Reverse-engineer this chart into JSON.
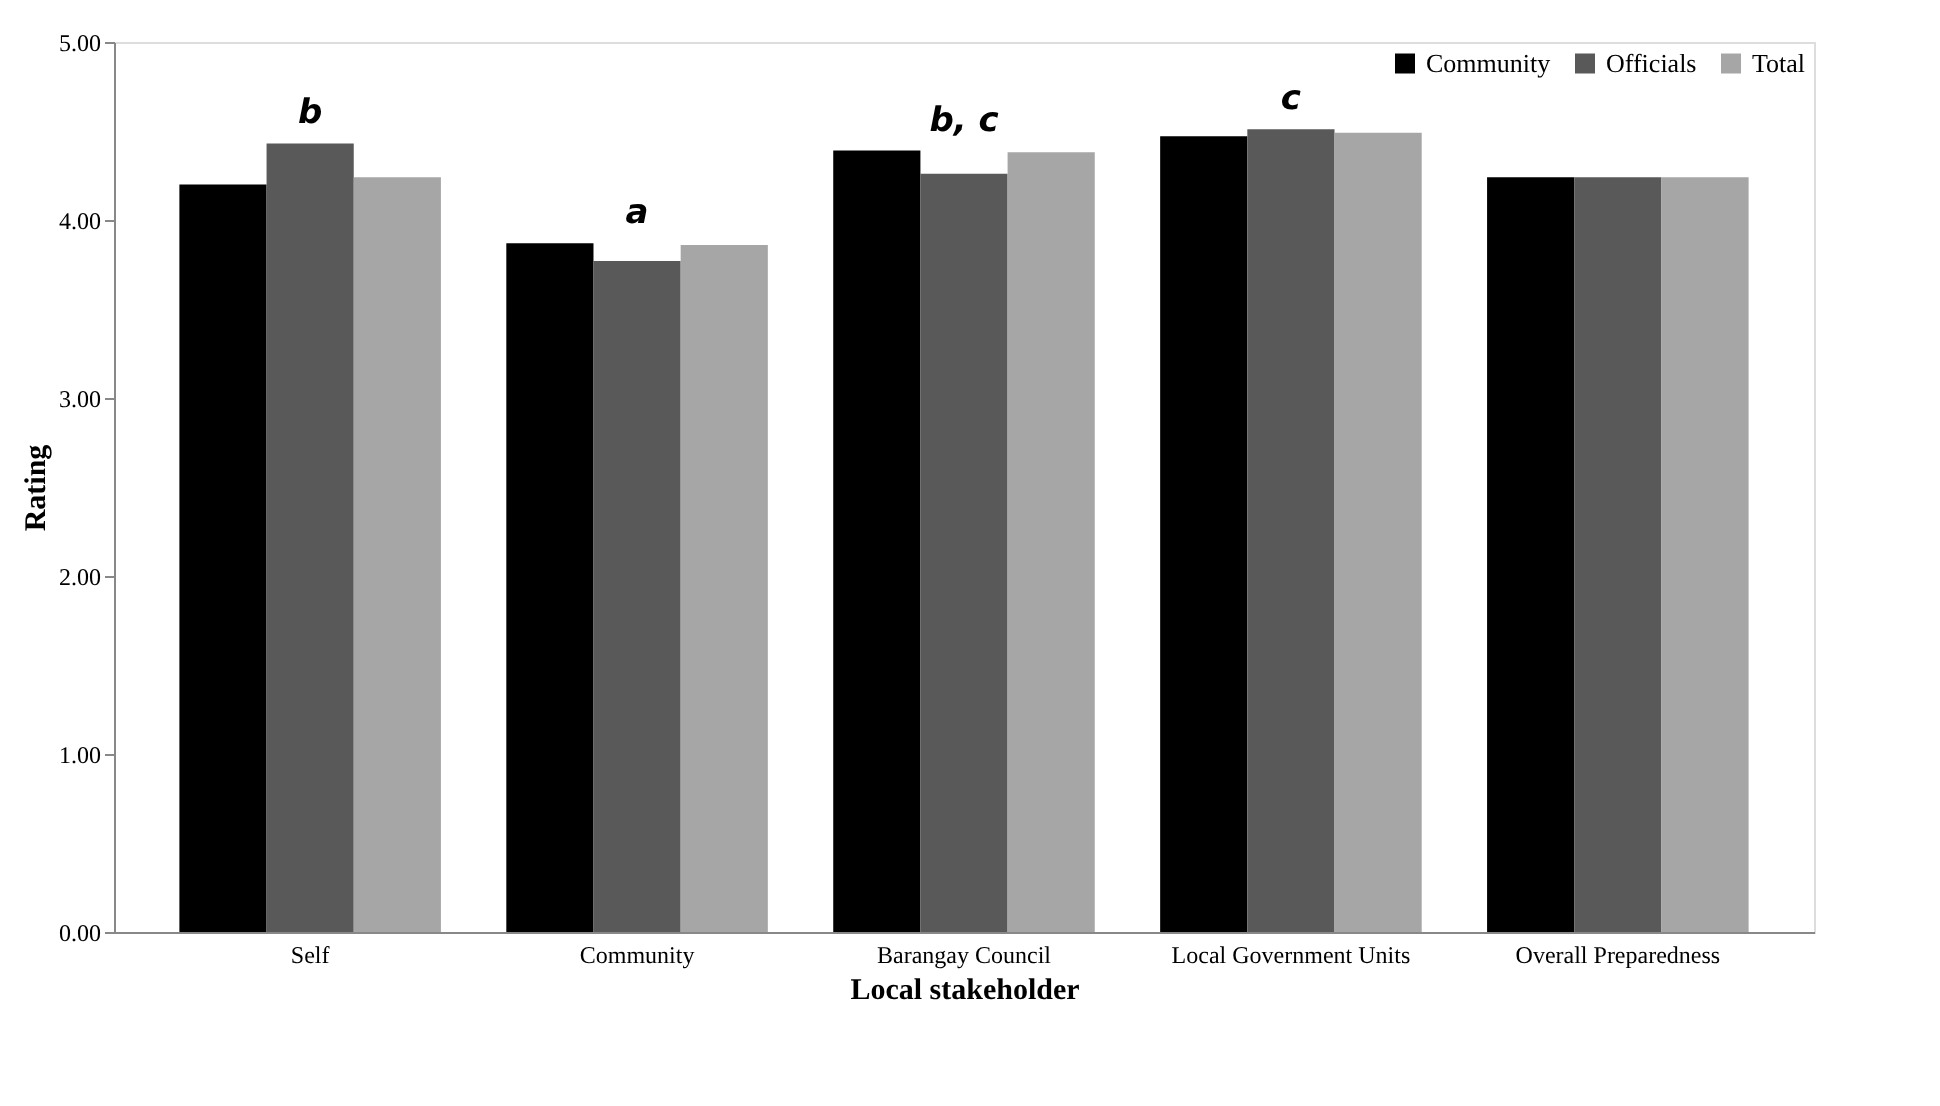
{
  "chart_data": {
    "type": "bar",
    "xlabel": "Local stakeholder",
    "ylabel": "Rating",
    "categories": [
      "Self",
      "Community",
      "Barangay Council",
      "Local Government Units",
      "Overall Preparedness"
    ],
    "series": [
      {
        "name": "Community",
        "color": "#000000",
        "values": [
          4.2,
          3.87,
          4.39,
          4.47,
          4.24
        ]
      },
      {
        "name": "Officials",
        "color": "#595959",
        "values": [
          4.43,
          3.77,
          4.26,
          4.51,
          4.24
        ]
      },
      {
        "name": "Total",
        "color": "#a6a6a6",
        "values": [
          4.24,
          3.86,
          4.38,
          4.49,
          4.24
        ]
      }
    ],
    "ylim": [
      0,
      5
    ],
    "yticks": [
      {
        "value": 0,
        "label": "0.00"
      },
      {
        "value": 1,
        "label": "1.00"
      },
      {
        "value": 2,
        "label": "2.00"
      },
      {
        "value": 3,
        "label": "3.00"
      },
      {
        "value": 4,
        "label": "4.00"
      },
      {
        "value": 5,
        "label": "5.00"
      }
    ],
    "annotations": [
      "b",
      "a",
      "b, c",
      "c"
    ],
    "legend": "top right",
    "grid": false
  }
}
